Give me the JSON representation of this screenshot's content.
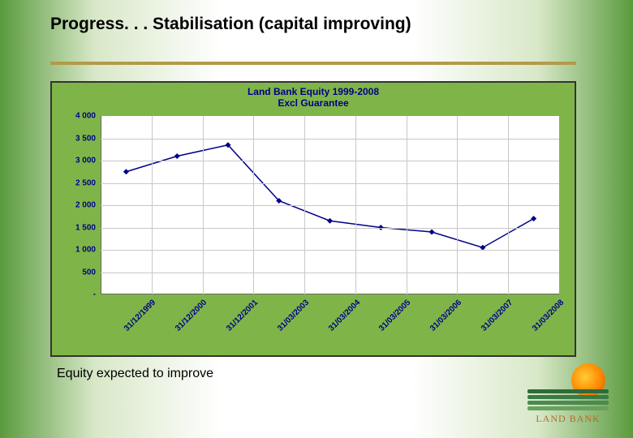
{
  "slide": {
    "title": "Progress. . . Stabilisation (capital improving)",
    "caption": "Equity expected to improve",
    "underline_color": "#b39a4a"
  },
  "chart": {
    "type": "line",
    "title_line1": "Land Bank Equity 1999-2008",
    "title_line2": "Excl Guarantee",
    "panel_bg": "#7fb548",
    "plot_bg": "#ffffff",
    "grid_color": "#c8c8c8",
    "title_color": "#000088",
    "label_color": "#000088",
    "line_color": "#000088",
    "marker_color": "#000088",
    "line_width": 1.5,
    "marker_size": 5,
    "title_fontsize": 12,
    "label_fontsize": 10,
    "ylim": [
      0,
      4000
    ],
    "ytick_step": 500,
    "yticks": [
      {
        "v": 0,
        "label": "-"
      },
      {
        "v": 500,
        "label": "500"
      },
      {
        "v": 1000,
        "label": "1 000"
      },
      {
        "v": 1500,
        "label": "1 500"
      },
      {
        "v": 2000,
        "label": "2 000"
      },
      {
        "v": 2500,
        "label": "2 500"
      },
      {
        "v": 3000,
        "label": "3 000"
      },
      {
        "v": 3500,
        "label": "3 500"
      },
      {
        "v": 4000,
        "label": "4 000"
      }
    ],
    "categories": [
      "31/12/1999",
      "31/12/2000",
      "31/12/2001",
      "31/03/2003",
      "31/03/2004",
      "31/03/2005",
      "31/03/2006",
      "31/03/2007",
      "31/03/2008"
    ],
    "values": [
      2750,
      3100,
      3350,
      2100,
      1650,
      1500,
      1400,
      1050,
      1700
    ]
  },
  "logo": {
    "text": "LAND BANK",
    "row_colors": [
      "#2e6b3a",
      "#3a7a44",
      "#4a8a50",
      "#6aa05e"
    ],
    "text_color": "#b36b2a"
  }
}
